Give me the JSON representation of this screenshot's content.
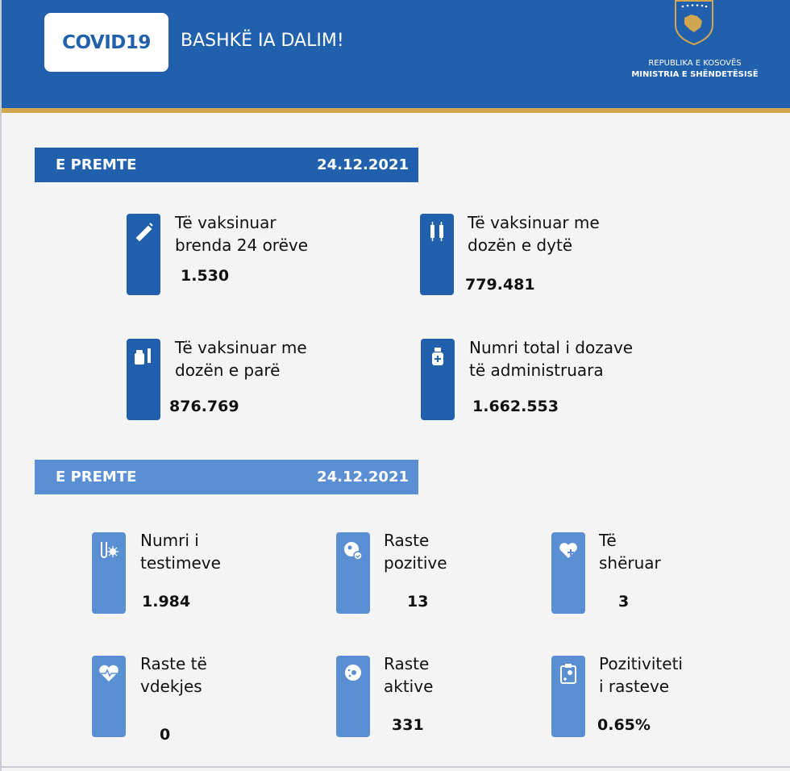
{
  "header": {
    "logo": "COVID19",
    "slogan": "BASHKË IA DALIM!",
    "republic": "REPUBLIKA E KOSOVËS",
    "ministry": "MINISTRIA E SHËNDETËSISË"
  },
  "colors": {
    "primary": "#2160ac",
    "secondary": "#5a8fd4",
    "gold": "#d2a64f"
  },
  "vaccination": {
    "day": "E PREMTE",
    "date": "24.12.2021",
    "items": [
      {
        "label1": "Të vaksinuar",
        "label2": "brenda 24 orëve",
        "value": "1.530",
        "icon": "syringe-icon"
      },
      {
        "label1": "Të vaksinuar me",
        "label2": "dozën e dytë",
        "value": "779.481",
        "icon": "two-syringes-icon"
      },
      {
        "label1": "Të vaksinuar me",
        "label2": "dozën e parë",
        "value": "876.769",
        "icon": "vial-syringe-icon"
      },
      {
        "label1": "Numri total i dozave",
        "label2": "të administruara",
        "value": "1.662.553",
        "icon": "vaccine-bottle-icon"
      }
    ]
  },
  "cases": {
    "day": "E PREMTE",
    "date": "24.12.2021",
    "items": [
      {
        "label1": "Numri i",
        "label2": "testimeve",
        "value": "1.984",
        "icon": "test-tube-icon"
      },
      {
        "label1": "Raste",
        "label2": "pozitive",
        "value": "13",
        "icon": "virus-check-icon"
      },
      {
        "label1": "Të",
        "label2": "shëruar",
        "value": "3",
        "icon": "heart-plus-icon"
      },
      {
        "label1": "Raste të",
        "label2": "vdekjes",
        "value": "0",
        "icon": "heartbeat-icon"
      },
      {
        "label1": "Raste",
        "label2": "aktive",
        "value": "331",
        "icon": "virus-icon"
      },
      {
        "label1": "Pozitiviteti",
        "label2": "i rasteve",
        "value": "0.65%",
        "icon": "clipboard-icon"
      }
    ]
  }
}
